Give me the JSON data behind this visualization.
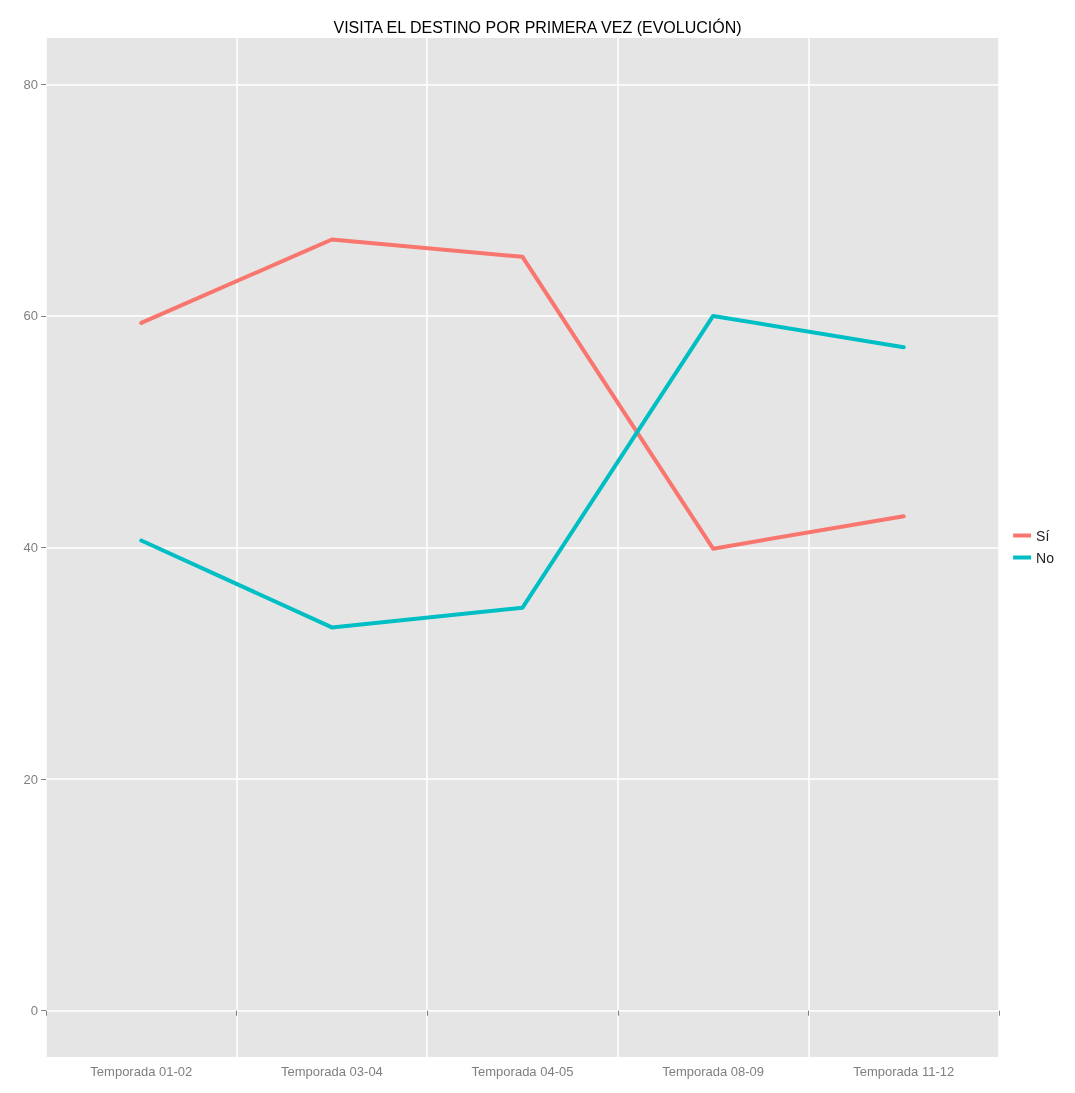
{
  "chart_data": {
    "type": "line",
    "title": "VISITA EL DESTINO POR PRIMERA VEZ (EVOLUCIÓN)",
    "categories": [
      "Temporada 01-02",
      "Temporada 03-04",
      "Temporada 04-05",
      "Temporada 08-09",
      "Temporada 11-12"
    ],
    "series": [
      {
        "name": "Sí",
        "color": "#f8766d",
        "values": [
          59.4,
          66.6,
          65.1,
          39.9,
          42.7
        ]
      },
      {
        "name": "No",
        "color": "#00bfc4",
        "values": [
          40.6,
          33.1,
          34.8,
          60.0,
          57.3
        ]
      }
    ],
    "ylim": [
      -4,
      84
    ],
    "yticks": [
      0,
      20,
      40,
      60,
      80
    ],
    "grid": true,
    "legend": "right",
    "marker": "none",
    "line_style": "solid"
  }
}
